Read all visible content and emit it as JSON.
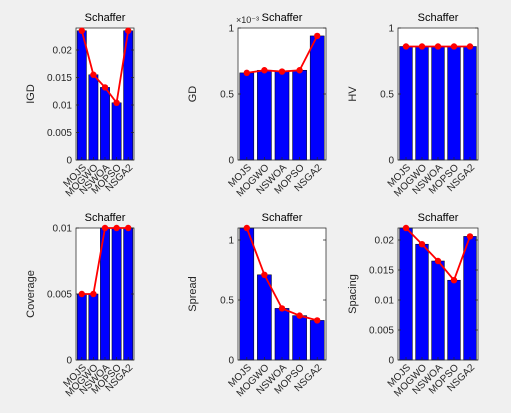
{
  "figure": {
    "background": "#f0f0f0"
  },
  "chart_data": [
    {
      "type": "bar",
      "overlay": "line",
      "title": "Schaffer",
      "xlabel": "",
      "ylabel": "IGD",
      "categories": [
        "MOJS",
        "MOGWO",
        "NSWOA",
        "MOPSO",
        "NSGA2"
      ],
      "values": [
        0.0235,
        0.0155,
        0.0132,
        0.0104,
        0.0235
      ],
      "ylim": [
        0,
        0.024
      ],
      "yticks": [
        0,
        0.005,
        0.01,
        0.015,
        0.02
      ],
      "ytick_labels": [
        "0",
        "0.005",
        "0.01",
        "0.015",
        "0.02"
      ],
      "exponent_label": "",
      "bar_color": "#0000ff",
      "line_color": "#ff0000",
      "grid": false
    },
    {
      "type": "bar",
      "overlay": "line",
      "title": "Schaffer",
      "xlabel": "",
      "ylabel": "GD",
      "categories": [
        "MOJS",
        "MOGWO",
        "NSWOA",
        "MOPSO",
        "NSGA2"
      ],
      "values": [
        0.66,
        0.68,
        0.67,
        0.68,
        0.94
      ],
      "ylim": [
        0,
        1
      ],
      "yticks": [
        0,
        0.5,
        1
      ],
      "ytick_labels": [
        "0",
        "0.5",
        "1"
      ],
      "exponent_label": "×10⁻³",
      "bar_color": "#0000ff",
      "line_color": "#ff0000",
      "grid": false
    },
    {
      "type": "bar",
      "overlay": "line",
      "title": "Schaffer",
      "xlabel": "",
      "ylabel": "HV",
      "categories": [
        "MOJS",
        "MOGWO",
        "NSWOA",
        "MOPSO",
        "NSGA2"
      ],
      "values": [
        0.86,
        0.86,
        0.86,
        0.86,
        0.86
      ],
      "ylim": [
        0,
        1
      ],
      "yticks": [
        0,
        0.5,
        1
      ],
      "ytick_labels": [
        "0",
        "0.5",
        "1"
      ],
      "exponent_label": "",
      "bar_color": "#0000ff",
      "line_color": "#ff0000",
      "grid": false
    },
    {
      "type": "bar",
      "overlay": "line",
      "title": "Schaffer",
      "xlabel": "",
      "ylabel": "Coverage",
      "categories": [
        "MOJS",
        "MOGWO",
        "NSWOA",
        "MOPSO",
        "NSGA2"
      ],
      "values": [
        0.005,
        0.005,
        0.01,
        0.01,
        0.01
      ],
      "ylim": [
        0,
        0.01
      ],
      "yticks": [
        0,
        0.005,
        0.01
      ],
      "ytick_labels": [
        "0",
        "0.005",
        "0.01"
      ],
      "exponent_label": "",
      "bar_color": "#0000ff",
      "line_color": "#ff0000",
      "grid": false
    },
    {
      "type": "bar",
      "overlay": "line",
      "title": "Schaffer",
      "xlabel": "",
      "ylabel": "Spread",
      "categories": [
        "MOJS",
        "MOGWO",
        "NSWOA",
        "MOPSO",
        "NSGA2"
      ],
      "values": [
        1.1,
        0.71,
        0.43,
        0.37,
        0.33
      ],
      "ylim": [
        0,
        1.1
      ],
      "yticks": [
        0,
        0.5,
        1
      ],
      "ytick_labels": [
        "0",
        "0.5",
        "1"
      ],
      "exponent_label": "",
      "bar_color": "#0000ff",
      "line_color": "#ff0000",
      "grid": false
    },
    {
      "type": "bar",
      "overlay": "line",
      "title": "Schaffer",
      "xlabel": "",
      "ylabel": "Spacing",
      "categories": [
        "MOJS",
        "MOGWO",
        "NSWOA",
        "MOPSO",
        "NSGA2"
      ],
      "values": [
        0.022,
        0.0193,
        0.0165,
        0.0133,
        0.0206
      ],
      "ylim": [
        0,
        0.022
      ],
      "yticks": [
        0,
        0.005,
        0.01,
        0.015,
        0.02
      ],
      "ytick_labels": [
        "0",
        "0.005",
        "0.01",
        "0.015",
        "0.02"
      ],
      "exponent_label": "",
      "bar_color": "#0000ff",
      "line_color": "#ff0000",
      "grid": false
    }
  ]
}
